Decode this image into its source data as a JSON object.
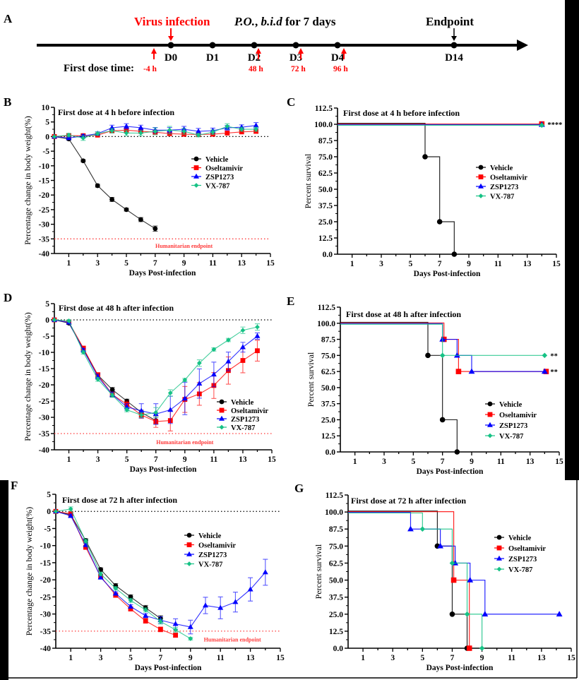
{
  "panel_a": {
    "letter": "A",
    "virus_infection": "Virus infection",
    "po": "P.O.",
    "comma": ", ",
    "bid": "b.i.d",
    "for_days": " for 7 days",
    "endpoint": "Endpoint",
    "days": [
      "D0",
      "D1",
      "D2",
      "D3",
      "D4",
      "D14"
    ],
    "first_dose_label": "First dose time:",
    "dose_times": [
      "-4 h",
      "48 h",
      "72 h",
      "96 h"
    ],
    "accent_color": "#ff0000"
  },
  "chart_data": [
    {
      "panel": "B",
      "type": "line",
      "title": "First dose at 4 h before infection",
      "xlabel": "Days Post-infection",
      "ylabel": "Percentage change in body weight(%)",
      "xlim": [
        0,
        15
      ],
      "ylim": [
        -40,
        10
      ],
      "xticks": [
        1,
        3,
        5,
        7,
        9,
        11,
        13,
        15
      ],
      "yticks": [
        10,
        5,
        0,
        -5,
        -10,
        -15,
        -20,
        -25,
        -30,
        -35,
        -40
      ],
      "reference_lines": [
        {
          "y": 0,
          "color": "#000000",
          "style": "dotted",
          "label": ""
        },
        {
          "y": -35,
          "color": "#ff3b3b",
          "style": "dotted",
          "label": "Humanitarian endpoint"
        }
      ],
      "legend": "center-right",
      "annotations": [],
      "series": [
        {
          "name": "Vehicle",
          "color": "#000000",
          "marker": "circle",
          "x": [
            0,
            1,
            2,
            3,
            4,
            5,
            6,
            7
          ],
          "y": [
            0,
            -0.8,
            -8.3,
            -16.8,
            -21.5,
            -25,
            -28.4,
            -31.5
          ],
          "err": [
            0,
            0.4,
            0.4,
            0.5,
            0.7,
            0.5,
            0.7,
            0.9
          ]
        },
        {
          "name": "Oseltamivir",
          "color": "#ff0000",
          "marker": "square",
          "x": [
            0,
            1,
            2,
            3,
            4,
            5,
            6,
            7,
            8,
            9,
            10,
            11,
            12,
            13,
            14
          ],
          "y": [
            0,
            0.3,
            0.3,
            0.5,
            2,
            2.2,
            1.8,
            1.5,
            1,
            0.8,
            0.7,
            0.8,
            1.2,
            1.6,
            1.8
          ],
          "err": [
            0,
            0.5,
            0.5,
            0.5,
            0.6,
            0.6,
            0.6,
            0.6,
            0.6,
            0.6,
            0.6,
            0.6,
            0.6,
            0.6,
            0.7
          ]
        },
        {
          "name": "ZSP1273",
          "color": "#0000ff",
          "marker": "triangle",
          "x": [
            0,
            1,
            2,
            3,
            4,
            5,
            6,
            7,
            8,
            9,
            10,
            11,
            12,
            13,
            14
          ],
          "y": [
            0,
            -0.5,
            0.2,
            1,
            3,
            3.5,
            3,
            2.2,
            2.2,
            2.5,
            1.8,
            2,
            3,
            3.2,
            3.8
          ],
          "err": [
            0,
            0.5,
            0.5,
            0.6,
            0.9,
            0.9,
            0.9,
            0.9,
            0.9,
            1,
            1,
            0.9,
            0.8,
            0.8,
            1
          ]
        },
        {
          "name": "VX-787",
          "color": "#16c285",
          "marker": "diamond",
          "x": [
            0,
            1,
            2,
            3,
            4,
            5,
            6,
            7,
            8,
            9,
            10,
            11,
            12,
            13,
            14
          ],
          "y": [
            0,
            0.5,
            -0.5,
            1,
            2,
            1.2,
            1.2,
            1.8,
            2.2,
            1.8,
            0.5,
            1.5,
            3.5,
            2.5,
            2.5
          ],
          "err": [
            0,
            0.6,
            0.8,
            0.6,
            0.8,
            0.9,
            0.9,
            1.2,
            1.3,
            1,
            0.6,
            0.8,
            0.9,
            0.7,
            0.7
          ]
        }
      ]
    },
    {
      "panel": "C",
      "type": "step",
      "title": "First dose at 4 h before infection",
      "xlabel": "Days Post-infection",
      "ylabel": "Percent survival",
      "xlim": [
        0,
        15
      ],
      "ylim": [
        0,
        112.5
      ],
      "xticks": [
        1,
        3,
        5,
        7,
        9,
        11,
        13,
        15
      ],
      "yticks": [
        112.5,
        100.0,
        87.5,
        75.0,
        62.5,
        50.0,
        37.5,
        25.0,
        12.5,
        0.0
      ],
      "ytick_labels": [
        "112.5",
        "100.0",
        "87.5",
        "75.0",
        "62.5",
        "50.0",
        "37.5",
        "25.0",
        "12.5",
        "0.0"
      ],
      "reference_lines": [],
      "legend": "center-right",
      "annotations": [
        {
          "text": "****",
          "x": 14,
          "y": 100
        }
      ],
      "series": [
        {
          "name": "Vehicle",
          "color": "#000000",
          "marker": "circle",
          "x": [
            6,
            7,
            8
          ],
          "y": [
            75,
            25,
            0
          ]
        },
        {
          "name": "Oseltamivir",
          "color": "#ff0000",
          "marker": "square",
          "x": [
            14
          ],
          "y": [
            100
          ]
        },
        {
          "name": "ZSP1273",
          "color": "#0000ff",
          "marker": "triangle",
          "x": [
            14
          ],
          "y": [
            100
          ]
        },
        {
          "name": "VX-787",
          "color": "#16c285",
          "marker": "diamond",
          "x": [
            14
          ],
          "y": [
            100
          ]
        }
      ]
    },
    {
      "panel": "D",
      "type": "line",
      "title": "First dose at 48 h after infection",
      "xlabel": "Days Post-infection",
      "ylabel": "Percentage change in body weight(%)",
      "xlim": [
        0,
        15
      ],
      "ylim": [
        -40,
        5
      ],
      "xticks": [
        1,
        3,
        5,
        7,
        9,
        11,
        13,
        15
      ],
      "yticks": [
        5,
        0,
        -5,
        -10,
        -15,
        -20,
        -25,
        -30,
        -35,
        -40
      ],
      "reference_lines": [
        {
          "y": 0,
          "color": "#000000",
          "style": "dotted",
          "label": ""
        },
        {
          "y": -35,
          "color": "#ff3b3b",
          "style": "dotted",
          "label": "Humanitarian endpoint"
        }
      ],
      "legend": "bottom-right",
      "annotations": [],
      "series": [
        {
          "name": "Vehicle",
          "color": "#000000",
          "marker": "circle",
          "x": [
            0,
            1,
            2,
            3,
            4,
            5,
            6,
            7
          ],
          "y": [
            0,
            -1,
            -9,
            -17,
            -21.5,
            -25,
            -28.5,
            -31
          ],
          "err": [
            0,
            0.4,
            0.5,
            0.5,
            0.7,
            0.6,
            0.7,
            1
          ]
        },
        {
          "name": "Oseltamivir",
          "color": "#ff0000",
          "marker": "square",
          "x": [
            0,
            1,
            2,
            3,
            4,
            5,
            6,
            7,
            8,
            9,
            10,
            11,
            12,
            13,
            14
          ],
          "y": [
            0,
            -0.7,
            -8.7,
            -17,
            -23,
            -26,
            -29.3,
            -31.3,
            -31,
            -24.5,
            -22.8,
            -20.2,
            -15.6,
            -12.5,
            -9.5
          ],
          "err": [
            0,
            0.5,
            0.5,
            0.8,
            0.8,
            1,
            1,
            1.8,
            3.2,
            4,
            3.5,
            4,
            4.2,
            3.8,
            3.2
          ]
        },
        {
          "name": "ZSP1273",
          "color": "#0000ff",
          "marker": "triangle",
          "x": [
            0,
            1,
            2,
            3,
            4,
            5,
            6,
            7,
            8,
            9,
            10,
            11,
            12,
            13,
            14
          ],
          "y": [
            0,
            -0.8,
            -9.3,
            -17.5,
            -23,
            -26.8,
            -28,
            -29,
            -27.7,
            -24.2,
            -19.6,
            -16.8,
            -12.8,
            -8.4,
            -5
          ],
          "err": [
            0,
            0.5,
            0.5,
            0.8,
            0.8,
            1,
            2.2,
            3.2,
            4.2,
            5,
            4.5,
            3.8,
            2.9,
            1.5,
            1
          ]
        },
        {
          "name": "VX-787",
          "color": "#16c285",
          "marker": "diamond",
          "x": [
            0,
            1,
            2,
            3,
            4,
            5,
            6,
            7,
            8,
            9,
            10,
            11,
            12,
            13,
            14
          ],
          "y": [
            0,
            -0.3,
            -10,
            -18.3,
            -23.2,
            -27.7,
            -29.3,
            -28.5,
            -22.5,
            -18.5,
            -13.3,
            -9.1,
            -6.2,
            -3.2,
            -2.2
          ],
          "err": [
            0,
            0.3,
            0.5,
            0.6,
            0.6,
            0.6,
            0.8,
            1.5,
            1,
            0.5,
            1,
            0.5,
            0.5,
            1,
            1
          ]
        }
      ]
    },
    {
      "panel": "E",
      "type": "step",
      "title": "First dose at 48 h after infection",
      "xlabel": "Days Post-infection",
      "ylabel": "Percent survival",
      "xlim": [
        0,
        15
      ],
      "ylim": [
        0,
        112.5
      ],
      "xticks": [
        1,
        3,
        5,
        7,
        9,
        11,
        13,
        15
      ],
      "yticks": [
        112.5,
        100.0,
        87.5,
        75.0,
        62.5,
        50.0,
        37.5,
        25.0,
        12.5,
        0.0
      ],
      "ytick_labels": [
        "112.5",
        "100.0",
        "87.5",
        "75.0",
        "62.5",
        "50.0",
        "37.5",
        "25.0",
        "12.5",
        "0.0"
      ],
      "reference_lines": [],
      "legend": "bottom-right",
      "annotations": [
        {
          "text": "**",
          "x": 14,
          "y": 75
        },
        {
          "text": "**",
          "x": 14,
          "y": 62.5
        }
      ],
      "series": [
        {
          "name": "Vehicle",
          "color": "#000000",
          "marker": "circle",
          "x": [
            6,
            7,
            8
          ],
          "y": [
            75,
            25,
            0
          ]
        },
        {
          "name": "Oseltamivir",
          "color": "#ff0000",
          "marker": "square",
          "x": [
            7.1,
            8.1,
            14.1
          ],
          "y": [
            87.5,
            62.5,
            62.5
          ]
        },
        {
          "name": "ZSP1273",
          "color": "#0000ff",
          "marker": "triangle",
          "x": [
            7,
            8,
            9,
            14
          ],
          "y": [
            87.5,
            75,
            62.5,
            62.5
          ]
        },
        {
          "name": "VX-787",
          "color": "#16c285",
          "marker": "diamond",
          "x": [
            7,
            14
          ],
          "y": [
            75,
            75
          ]
        }
      ]
    },
    {
      "panel": "F",
      "type": "line",
      "title": "First dose at 72 h after infection",
      "xlabel": "Days Post-infection",
      "ylabel": "Percentage change in body weight(%)",
      "xlim": [
        0,
        15
      ],
      "ylim": [
        -40,
        5
      ],
      "xticks": [
        1,
        3,
        5,
        7,
        9,
        11,
        13,
        15
      ],
      "yticks": [
        5,
        0,
        -5,
        -10,
        -15,
        -20,
        -25,
        -30,
        -35,
        -40
      ],
      "reference_lines": [
        {
          "y": 0,
          "color": "#000000",
          "style": "dotted",
          "label": ""
        },
        {
          "y": -35,
          "color": "#ff3b3b",
          "style": "dotted",
          "label": "Humanitarian endpoint"
        }
      ],
      "legend": "center-right",
      "annotations": [],
      "series": [
        {
          "name": "Vehicle",
          "color": "#000000",
          "marker": "circle",
          "x": [
            0,
            1,
            2,
            3,
            4,
            5,
            6,
            7
          ],
          "y": [
            0,
            -1,
            -8.5,
            -17,
            -21.7,
            -25,
            -28.2,
            -31.3
          ],
          "err": [
            0,
            0.4,
            0.5,
            0.5,
            0.6,
            0.6,
            0.7,
            0.8
          ]
        },
        {
          "name": "Oseltamivir",
          "color": "#ff0000",
          "marker": "square",
          "x": [
            0,
            1,
            2,
            3,
            4,
            5,
            6,
            7,
            8
          ],
          "y": [
            0,
            -0.7,
            -10.5,
            -19,
            -24.5,
            -28.5,
            -32,
            -34.5,
            -36.2
          ],
          "err": [
            0,
            0.4,
            0.5,
            0.5,
            0.6,
            0.6,
            0.7,
            0.7,
            0.6
          ]
        },
        {
          "name": "ZSP1273",
          "color": "#0000ff",
          "marker": "triangle",
          "x": [
            0,
            1,
            2,
            3,
            4,
            5,
            6,
            7,
            8,
            9,
            10,
            11,
            12,
            13,
            14
          ],
          "y": [
            0,
            -1.3,
            -9.8,
            -19.3,
            -24,
            -27.8,
            -30.5,
            -31.8,
            -32.9,
            -33.8,
            -27.5,
            -28.2,
            -26.5,
            -22.8,
            -17.8
          ],
          "err": [
            0,
            0.5,
            0.5,
            0.5,
            0.5,
            0.5,
            0.6,
            1,
            1.5,
            2,
            2.4,
            3.2,
            2.9,
            3.4,
            3.8
          ]
        },
        {
          "name": "VX-787",
          "color": "#16c285",
          "marker": "diamond",
          "x": [
            0,
            1,
            2,
            3,
            4,
            5,
            6,
            7,
            8,
            9
          ],
          "y": [
            0,
            0.7,
            -8.7,
            -18.3,
            -22.5,
            -26,
            -28.8,
            -32.2,
            -34.6,
            -37.2
          ],
          "err": [
            0,
            0.6,
            0.5,
            0.5,
            0.5,
            0.6,
            0.6,
            0.7,
            0.7,
            0.4
          ]
        }
      ]
    },
    {
      "panel": "G",
      "type": "step",
      "title": "First dose at 72 h after infection",
      "xlabel": "Days Post-infection",
      "ylabel": "Percent survival",
      "xlim": [
        0,
        15
      ],
      "ylim": [
        0,
        112.5
      ],
      "xticks": [
        1,
        3,
        5,
        7,
        9,
        11,
        13,
        15
      ],
      "yticks": [
        112.5,
        100.0,
        87.5,
        75.0,
        62.5,
        50.0,
        37.5,
        25.0,
        12.5,
        0.0
      ],
      "ytick_labels": [
        "112.5",
        "100.0",
        "87.5",
        "75.0",
        "62.5",
        "50.0",
        "37.5",
        "25.0",
        "12.5",
        "0.0"
      ],
      "reference_lines": [],
      "legend": "center-right",
      "annotations": [],
      "series": [
        {
          "name": "Vehicle",
          "color": "#000000",
          "marker": "circle",
          "x": [
            6,
            7,
            8
          ],
          "y": [
            75,
            25,
            0
          ]
        },
        {
          "name": "Oseltamivir",
          "color": "#ff0000",
          "marker": "square",
          "x": [
            7.1,
            8.15
          ],
          "y": [
            50,
            0
          ]
        },
        {
          "name": "ZSP1273",
          "color": "#0000ff",
          "marker": "triangle",
          "x": [
            4.2,
            6.2,
            7.2,
            8.2,
            9.2,
            14.2
          ],
          "y": [
            87.5,
            75,
            62.5,
            50,
            25,
            25
          ]
        },
        {
          "name": "VX-787",
          "color": "#16c285",
          "marker": "diamond",
          "x": [
            5,
            7,
            8,
            9
          ],
          "y": [
            87.5,
            62.5,
            25,
            0
          ]
        }
      ]
    }
  ]
}
